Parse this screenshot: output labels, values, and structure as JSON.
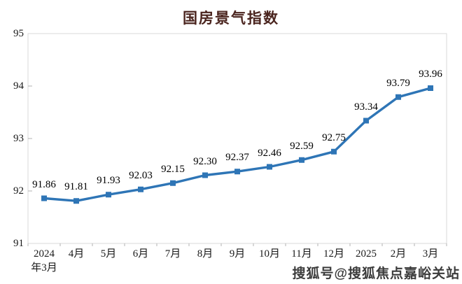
{
  "title": "国房景气指数",
  "watermark": "搜狐号@搜狐焦点嘉峪关站",
  "colors": {
    "title_text": "#4a241e",
    "line": "#2e75b6",
    "marker": "#2e75b6",
    "plot_border": "#d9d9d9",
    "tick": "#b3b3b3",
    "axis_text": "#1a1a1a",
    "data_label_text": "#000000",
    "watermark_text": "#3b3b3b"
  },
  "chart_data": {
    "type": "line",
    "title": "国房景气指数",
    "categories": [
      "2024年3月",
      "4月",
      "5月",
      "6月",
      "7月",
      "8月",
      "9月",
      "10月",
      "11月",
      "12月",
      "2025",
      "2月",
      "3月"
    ],
    "x_tick_labels": [
      "2024\n年3月",
      "4月",
      "5月",
      "6月",
      "7月",
      "8月",
      "9月",
      "10月",
      "11月",
      "12月",
      "2025",
      "2月",
      "3月"
    ],
    "series": [
      {
        "name": "国房景气指数",
        "values": [
          91.86,
          91.81,
          91.93,
          92.03,
          92.15,
          92.3,
          92.37,
          92.46,
          92.59,
          92.75,
          93.34,
          93.79,
          93.96
        ],
        "data_labels": [
          "91.86",
          "91.81",
          "91.93",
          "92.03",
          "92.15",
          "92.30",
          "92.37",
          "92.46",
          "92.59",
          "92.75",
          "93.34",
          "93.79",
          "93.96"
        ]
      }
    ],
    "ylim": [
      91,
      95
    ],
    "y_ticks": [
      91,
      92,
      93,
      94,
      95
    ],
    "grid": false,
    "legend": "none",
    "marker_style": "square",
    "line_width": 3.4
  }
}
